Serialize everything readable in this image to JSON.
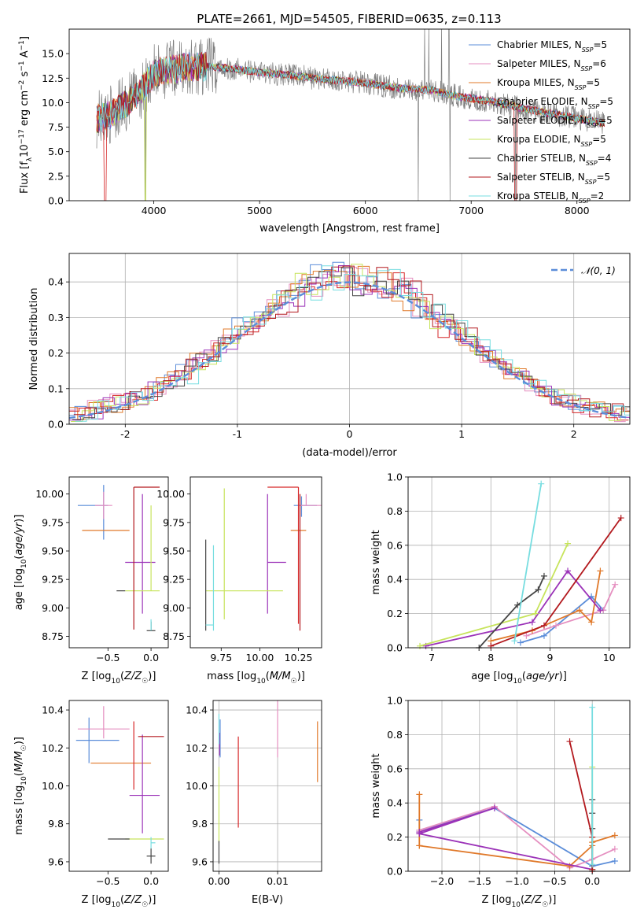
{
  "figure": {
    "title": "PLATE=2661, MJD=54505, FIBERID=0635, z=0.113"
  },
  "models": [
    {
      "name": "Chabrier MILES",
      "nssp": "5",
      "color": "#5b8dd9"
    },
    {
      "name": "Salpeter MILES",
      "nssp": "6",
      "color": "#e58fc0"
    },
    {
      "name": "Kroupa MILES",
      "nssp": "5",
      "color": "#e0792a"
    },
    {
      "name": "Chabrier ELODIE",
      "nssp": "5",
      "color": "#d62728"
    },
    {
      "name": "Salpeter ELODIE",
      "nssp": "5",
      "color": "#9b32b8"
    },
    {
      "name": "Kroupa ELODIE",
      "nssp": "5",
      "color": "#c7e45c"
    },
    {
      "name": "Chabrier STELIB",
      "nssp": "4",
      "color": "#444444"
    },
    {
      "name": "Salpeter STELIB",
      "nssp": "5",
      "color": "#b3191e"
    },
    {
      "name": "Kroupa STELIB",
      "nssp": "2",
      "color": "#77dde0"
    }
  ],
  "chart_data": [
    {
      "id": "spectrum",
      "type": "line",
      "xlabel": "wavelength [Angstrom, rest frame]",
      "ylabel": "Flux [f_λ 10^-17 erg cm^-2 s^-1 A^-1]",
      "xlim": [
        3200,
        8500
      ],
      "ylim": [
        0,
        17.5
      ],
      "xticks": [
        4000,
        5000,
        6000,
        7000,
        8000
      ],
      "yticks": [
        0.0,
        2.5,
        5.0,
        7.5,
        10.0,
        12.5,
        15.0
      ],
      "data_color": "#7f7f7f",
      "continuum": {
        "x": [
          3450,
          3600,
          3750,
          3900,
          4000,
          4100,
          4300,
          4500,
          4700,
          5000,
          5300,
          5600,
          6000,
          6300,
          6600,
          6900,
          7200,
          7500,
          7800,
          8100,
          8250
        ],
        "y": [
          8.3,
          8.8,
          10.0,
          11.5,
          13.0,
          13.3,
          13.6,
          13.7,
          13.5,
          13.1,
          12.8,
          12.4,
          12.0,
          11.5,
          11.3,
          10.6,
          10.1,
          9.4,
          8.8,
          8.2,
          7.9
        ]
      },
      "data_features": {
        "drops_to_zero": [
          3920,
          6500,
          6800,
          7420
        ],
        "spike_wavelengths": [
          6560,
          6600,
          6720,
          6790
        ]
      },
      "grid": false,
      "legend": "top-right"
    },
    {
      "id": "residuals",
      "type": "line",
      "xlabel": "(data-model)/error",
      "ylabel": "Normed distribution",
      "xlim": [
        -2.5,
        2.5
      ],
      "ylim": [
        0,
        0.48
      ],
      "xticks": [
        -2,
        -1,
        0,
        1,
        2
      ],
      "yticks": [
        0.0,
        0.1,
        0.2,
        0.3,
        0.4
      ],
      "reference_label": "𝒩(0, 1)",
      "reference_color": "#5b8dd9",
      "bin_width": 0.1,
      "grid": true,
      "legend": "top-right"
    },
    {
      "id": "age-vs-z",
      "type": "scatter",
      "xlabel": "Z [log10(Z/Z☉)]",
      "ylabel": "age [log10(age/yr)]",
      "xlim": [
        -0.95,
        0.2
      ],
      "ylim": [
        8.65,
        10.15
      ],
      "xticks": [
        -0.5,
        0.0
      ],
      "xtick_labels": [
        "−0.5",
        "0.0"
      ],
      "yticks": [
        8.75,
        9.0,
        9.25,
        9.5,
        9.75,
        10.0
      ],
      "points": [
        {
          "model": 0,
          "x": -0.55,
          "xerr": [
            0.3,
            0.05
          ],
          "y": 9.9,
          "yerr": [
            0.3,
            0.18
          ]
        },
        {
          "model": 1,
          "x": -0.55,
          "xerr": [
            0.1,
            0.1
          ],
          "y": 9.9,
          "yerr": [
            0.12,
            0.12
          ]
        },
        {
          "model": 2,
          "x": -0.45,
          "xerr": [
            0.35,
            0.2
          ],
          "y": 9.68,
          "yerr": [
            0.0,
            0.0
          ]
        },
        {
          "model": 3,
          "x": -0.05,
          "xerr": [
            0.0,
            0.0
          ],
          "y": 9.9,
          "yerr": [
            0.0,
            0.0
          ]
        },
        {
          "model": 4,
          "x": -0.1,
          "xerr": [
            0.2,
            0.15
          ],
          "y": 9.4,
          "yerr": [
            0.45,
            0.6
          ]
        },
        {
          "model": 5,
          "x": 0.0,
          "xerr": [
            0.3,
            0.1
          ],
          "y": 9.15,
          "yerr": [
            0.0,
            0.75
          ]
        },
        {
          "model": 6,
          "x": 0.0,
          "xerr": [
            0.05,
            0.05
          ],
          "y": 8.8,
          "yerr": [
            0.0,
            0.08
          ]
        },
        {
          "model": 7,
          "x": -0.2,
          "xerr": [
            0.0,
            0.3
          ],
          "y": 10.06,
          "yerr": [
            1.25,
            0.0
          ]
        },
        {
          "model": 8,
          "x": 0.0,
          "xerr": [
            0.0,
            0.0
          ],
          "y": 8.85,
          "yerr": [
            0.05,
            0.05
          ]
        },
        {
          "model": 6,
          "x": -0.3,
          "xerr": [
            0.1,
            0.0
          ],
          "y": 9.15,
          "yerr": [
            0.0,
            0.0
          ]
        }
      ],
      "grid": false
    },
    {
      "id": "age-vs-mass",
      "type": "scatter",
      "xlabel": "mass [log10(M/M☉)]",
      "ylabel": "",
      "xlim": [
        9.55,
        10.4
      ],
      "ylim": [
        8.65,
        10.15
      ],
      "xticks": [
        9.75,
        10.0,
        10.25
      ],
      "xtick_labels": [
        "9.75",
        "10.00",
        "10.25"
      ],
      "yticks": [
        8.75,
        9.0,
        9.25,
        9.5,
        9.75,
        10.0
      ],
      "points": [
        {
          "model": 0,
          "x": 10.27,
          "xerr": [
            0.05,
            0.1
          ],
          "y": 9.9,
          "yerr": [
            0.1,
            0.08
          ]
        },
        {
          "model": 1,
          "x": 10.3,
          "xerr": [
            0.05,
            0.1
          ],
          "y": 9.9,
          "yerr": [
            0.0,
            0.1
          ]
        },
        {
          "model": 2,
          "x": 10.25,
          "xerr": [
            0.05,
            0.05
          ],
          "y": 9.68,
          "yerr": [
            0.0,
            0.0
          ]
        },
        {
          "model": 3,
          "x": 10.25,
          "xerr": [
            0.2,
            0.0
          ],
          "y": 10.06,
          "yerr": [
            1.2,
            0.0
          ]
        },
        {
          "model": 4,
          "x": 10.05,
          "xerr": [
            0.0,
            0.12
          ],
          "y": 9.4,
          "yerr": [
            0.45,
            0.6
          ]
        },
        {
          "model": 5,
          "x": 9.85,
          "xerr": [
            0.2,
            0.3
          ],
          "y": 9.15,
          "yerr": [
            0.0,
            0.0
          ]
        },
        {
          "model": 6,
          "x": 9.65,
          "xerr": [
            0.0,
            0.0
          ],
          "y": 8.8,
          "yerr": [
            0.0,
            0.8
          ]
        },
        {
          "model": 7,
          "x": 10.26,
          "xerr": [
            0.0,
            0.0
          ],
          "y": 9.4,
          "yerr": [
            0.6,
            0.6
          ]
        },
        {
          "model": 8,
          "x": 9.7,
          "xerr": [
            0.05,
            0.0
          ],
          "y": 8.85,
          "yerr": [
            0.05,
            0.7
          ]
        },
        {
          "model": 5,
          "x": 9.77,
          "xerr": [
            0.0,
            0.0
          ],
          "y": 9.6,
          "yerr": [
            0.7,
            0.45
          ]
        }
      ],
      "grid": false
    },
    {
      "id": "massweight-vs-age",
      "type": "line",
      "xlabel": "age [log10(age/yr)]",
      "ylabel": "mass weight",
      "xlim": [
        6.6,
        10.35
      ],
      "ylim": [
        0,
        1.0
      ],
      "xticks": [
        7,
        8,
        9,
        10
      ],
      "yticks": [
        0.0,
        0.2,
        0.4,
        0.6,
        0.8,
        1.0
      ],
      "series": [
        {
          "model": 0,
          "x": [
            8.5,
            8.9,
            9.7,
            9.9
          ],
          "y": [
            0.03,
            0.07,
            0.3,
            0.22
          ]
        },
        {
          "model": 1,
          "x": [
            8.6,
            9.1,
            9.9,
            10.1
          ],
          "y": [
            0.07,
            0.13,
            0.22,
            0.37
          ]
        },
        {
          "model": 2,
          "x": [
            8.0,
            8.7,
            9.5,
            9.7,
            9.85
          ],
          "y": [
            0.04,
            0.1,
            0.22,
            0.15,
            0.45
          ]
        },
        {
          "model": 4,
          "x": [
            6.9,
            8.7,
            9.3,
            9.85
          ],
          "y": [
            0.01,
            0.15,
            0.45,
            0.22
          ]
        },
        {
          "model": 5,
          "x": [
            6.8,
            8.75,
            9.3
          ],
          "y": [
            0.01,
            0.2,
            0.61
          ]
        },
        {
          "model": 6,
          "x": [
            7.8,
            8.45,
            8.8,
            8.9
          ],
          "y": [
            0.0,
            0.25,
            0.34,
            0.42
          ]
        },
        {
          "model": 7,
          "x": [
            8.0,
            8.9,
            10.2
          ],
          "y": [
            0.01,
            0.13,
            0.76
          ]
        },
        {
          "model": 8,
          "x": [
            8.4,
            8.85
          ],
          "y": [
            0.04,
            0.96
          ]
        }
      ],
      "grid": true
    },
    {
      "id": "mass-vs-z",
      "type": "scatter",
      "xlabel": "Z [log10(Z/Z☉)]",
      "ylabel": "mass [log10(M/M☉)]",
      "xlim": [
        -0.95,
        0.2
      ],
      "ylim": [
        9.55,
        10.45
      ],
      "xticks": [
        -0.5,
        0.0
      ],
      "xtick_labels": [
        "−0.5",
        "0.0"
      ],
      "yticks": [
        9.6,
        9.8,
        10.0,
        10.2,
        10.4
      ],
      "points": [
        {
          "model": 0,
          "x": -0.72,
          "xerr": [
            0.15,
            0.35
          ],
          "y": 10.24,
          "yerr": [
            0.12,
            0.12
          ]
        },
        {
          "model": 1,
          "x": -0.55,
          "xerr": [
            0.3,
            0.3
          ],
          "y": 10.3,
          "yerr": [
            0.05,
            0.12
          ]
        },
        {
          "model": 2,
          "x": -0.35,
          "xerr": [
            0.35,
            0.35
          ],
          "y": 10.12,
          "yerr": [
            0.0,
            0.0
          ]
        },
        {
          "model": 3,
          "x": -0.2,
          "xerr": [
            0.0,
            0.0
          ],
          "y": 10.18,
          "yerr": [
            0.2,
            0.16
          ]
        },
        {
          "model": 4,
          "x": -0.1,
          "xerr": [
            0.15,
            0.2
          ],
          "y": 9.95,
          "yerr": [
            0.2,
            0.32
          ]
        },
        {
          "model": 5,
          "x": -0.1,
          "xerr": [
            0.2,
            0.25
          ],
          "y": 9.72,
          "yerr": [
            0.0,
            0.0
          ]
        },
        {
          "model": 6,
          "x": 0.0,
          "xerr": [
            0.05,
            0.05
          ],
          "y": 9.63,
          "yerr": [
            0.04,
            0.04
          ]
        },
        {
          "model": 7,
          "x": -0.15,
          "xerr": [
            0.0,
            0.3
          ],
          "y": 10.26,
          "yerr": [
            0.0,
            0.0
          ]
        },
        {
          "model": 8,
          "x": 0.0,
          "xerr": [
            0.0,
            0.05
          ],
          "y": 9.7,
          "yerr": [
            0.03,
            0.03
          ]
        },
        {
          "model": 6,
          "x": -0.25,
          "xerr": [
            0.25,
            0.0
          ],
          "y": 9.72,
          "yerr": [
            0.0,
            0.0
          ]
        }
      ],
      "grid": false
    },
    {
      "id": "mass-vs-ebv",
      "type": "scatter",
      "xlabel": "E(B-V)",
      "ylabel": "",
      "xlim": [
        -0.001,
        0.0175
      ],
      "ylim": [
        9.55,
        10.45
      ],
      "xticks": [
        0.0,
        0.01
      ],
      "xtick_labels": [
        "0.00",
        "0.01"
      ],
      "yticks": [
        9.6,
        9.8,
        10.0,
        10.2,
        10.4
      ],
      "points": [
        {
          "model": 0,
          "x": 0.0002,
          "xerr": [
            0.0,
            0.0
          ],
          "y": 10.25,
          "yerr": [
            0.1,
            0.1
          ]
        },
        {
          "model": 1,
          "x": 0.01,
          "xerr": [
            0.0,
            0.0
          ],
          "y": 10.3,
          "yerr": [
            0.15,
            0.15
          ]
        },
        {
          "model": 2,
          "x": 0.0168,
          "xerr": [
            0.0,
            0.0
          ],
          "y": 10.18,
          "yerr": [
            0.16,
            0.16
          ]
        },
        {
          "model": 3,
          "x": 0.0033,
          "xerr": [
            0.0,
            0.0
          ],
          "y": 10.02,
          "yerr": [
            0.24,
            0.24
          ]
        },
        {
          "model": 4,
          "x": 0.0001,
          "xerr": [
            0.0,
            0.0
          ],
          "y": 10.22,
          "yerr": [
            0.06,
            0.06
          ]
        },
        {
          "model": 5,
          "x": 0.0,
          "xerr": [
            0.0,
            0.0
          ],
          "y": 9.9,
          "yerr": [
            0.2,
            0.2
          ]
        },
        {
          "model": 6,
          "x": 0.0,
          "xerr": [
            0.0,
            0.0
          ],
          "y": 9.65,
          "yerr": [
            0.06,
            0.06
          ]
        },
        {
          "model": 8,
          "x": 0.0,
          "xerr": [
            0.0,
            0.0
          ],
          "y": 10.3,
          "yerr": [
            0.08,
            0.08
          ]
        }
      ],
      "grid": true
    },
    {
      "id": "massweight-vs-z",
      "type": "line",
      "xlabel": "Z [log10(Z/Z☉)]",
      "ylabel": "mass weight",
      "xlim": [
        -2.45,
        0.5
      ],
      "ylim": [
        0,
        1.0
      ],
      "xticks": [
        -2.0,
        -1.5,
        -1.0,
        -0.5,
        0.0
      ],
      "xtick_labels": [
        "−2.0",
        "−1.5",
        "−1.0",
        "−0.5",
        "0.0"
      ],
      "yticks": [
        0.0,
        0.2,
        0.4,
        0.6,
        0.8,
        1.0
      ],
      "series": [
        {
          "model": 0,
          "x": [
            -2.3,
            -2.3,
            -1.3,
            0.0,
            0.3
          ],
          "y": [
            0.3,
            0.24,
            0.37,
            0.03,
            0.06
          ]
        },
        {
          "model": 1,
          "x": [
            -2.3,
            -1.3,
            -0.3,
            0.0,
            0.3
          ],
          "y": [
            0.24,
            0.38,
            0.02,
            0.07,
            0.13
          ]
        },
        {
          "model": 2,
          "x": [
            -2.3,
            -2.3,
            -2.3,
            -0.3,
            0.0,
            0.0,
            0.3
          ],
          "y": [
            0.45,
            0.15,
            0.15,
            0.03,
            0.15,
            0.17,
            0.21
          ]
        },
        {
          "model": 4,
          "x": [
            -2.3,
            -1.3,
            -2.3,
            0.0
          ],
          "y": [
            0.23,
            0.37,
            0.22,
            0.01
          ]
        },
        {
          "model": 5,
          "x": [
            0.0,
            0.0,
            0.0
          ],
          "y": [
            0.01,
            0.2,
            0.61
          ]
        },
        {
          "model": 6,
          "x": [
            0.0,
            0.0,
            0.0,
            0.0
          ],
          "y": [
            0.0,
            0.25,
            0.34,
            0.42
          ]
        },
        {
          "model": 7,
          "x": [
            -0.3,
            0.0,
            0.0
          ],
          "y": [
            0.76,
            0.2,
            0.01
          ]
        },
        {
          "model": 8,
          "x": [
            0.0,
            0.0
          ],
          "y": [
            0.04,
            0.96
          ]
        }
      ],
      "grid": true
    }
  ]
}
